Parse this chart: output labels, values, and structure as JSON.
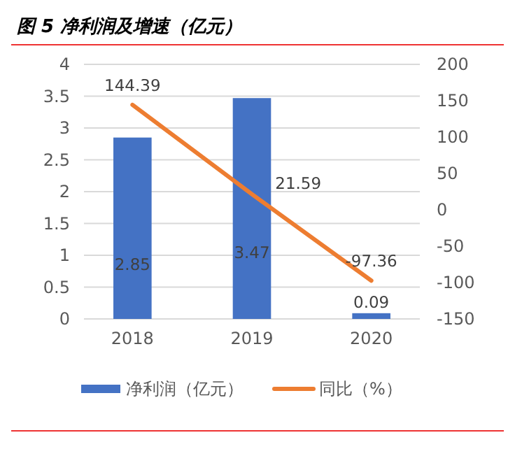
{
  "chart_data": {
    "type": "bar",
    "title": "图 5 净利润及增速（亿元）",
    "categories": [
      "2018",
      "2019",
      "2020"
    ],
    "series": [
      {
        "name": "净利润（亿元）",
        "color": "#4472c4",
        "values": [
          2.85,
          3.47,
          0.09
        ]
      },
      {
        "name": "同比（%）",
        "type": "line",
        "axis": "y2",
        "color": "#ed7d31",
        "values": [
          144.39,
          21.59,
          -97.36
        ]
      }
    ],
    "ylim": [
      0,
      4
    ],
    "yticks": [
      0,
      0.5,
      1,
      1.5,
      2,
      2.5,
      3,
      3.5,
      4
    ],
    "y2lim": [
      -150,
      200
    ],
    "y2ticks": [
      -150,
      -100,
      -50,
      0,
      50,
      100,
      150,
      200
    ],
    "grid": "y",
    "legend": "bottom",
    "data_labels": true
  }
}
